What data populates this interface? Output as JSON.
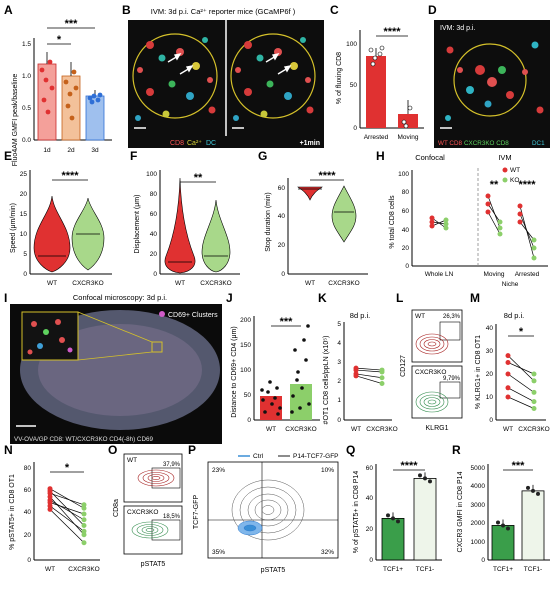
{
  "panels": {
    "A": {
      "letter": "A",
      "ylabel": "Fluo4AM GMFI peak/baseline",
      "ticks": [
        "1.5",
        "1.0",
        "0.5",
        "0.0"
      ],
      "cats": [
        "1d",
        "2d",
        "3d"
      ],
      "sig_top": "***",
      "sig_low": "*",
      "colors": [
        "#e03131",
        "#c5611b",
        "#2f6fd6"
      ]
    },
    "B": {
      "letter": "B",
      "title": "IVM: 3d p.i. Ca²⁺ reporter mice (GCaMP6f )",
      "legend_cd8": "CD8",
      "legend_ca": "Ca²⁺",
      "legend_dc": "DC",
      "time": "+1min"
    },
    "C": {
      "letter": "C",
      "ylabel": "% of fluxing CD8",
      "ticks": [
        "100",
        "50",
        "0"
      ],
      "cats": [
        "Arrested",
        "Moving"
      ],
      "sig": "****",
      "values": [
        85,
        17
      ]
    },
    "D": {
      "letter": "D",
      "title": "IVM: 3d p.i.",
      "legend": [
        "WT CD8",
        "CXCR3KO CD8",
        "DC1"
      ]
    },
    "E": {
      "letter": "E",
      "ylabel": "Speed (μm/min)",
      "ticks": [
        "25",
        "20",
        "15",
        "10",
        "5",
        "0"
      ],
      "cats": [
        "WT",
        "CXCR3KO"
      ],
      "sig": "****"
    },
    "F": {
      "letter": "F",
      "ylabel": "Displacement (μm)",
      "ticks": [
        "100",
        "80",
        "60",
        "40",
        "20",
        "0"
      ],
      "cats": [
        "WT",
        "CXCR3KO"
      ],
      "sig": "**"
    },
    "G": {
      "letter": "G",
      "ylabel": "Stop duration (min)",
      "ticks": [
        "60",
        "40",
        "20",
        "0"
      ],
      "cats": [
        "WT",
        "CXCR3KO"
      ],
      "sig": "****"
    },
    "H": {
      "letter": "H",
      "ylabel": "% total CD8 cells",
      "ticks": [
        "100",
        "80",
        "60",
        "40",
        "20",
        "0"
      ],
      "header_left": "Confocal",
      "header_right": "IVM",
      "legend": [
        "WT",
        "KO"
      ],
      "cats": [
        "Whole LN",
        "Moving",
        "Arrested"
      ],
      "niche": "Niche",
      "sig1": "**",
      "sig2": "****"
    },
    "I": {
      "letter": "I",
      "title": "Confocal microscopy: 3d p.i.",
      "cluster": "CD69+ Clusters",
      "legend": "VV-OVA/GP CD8: WT/CXCR3KO CD4(-8h) CD69"
    },
    "J": {
      "letter": "J",
      "ylabel": "Distance to CD69+ CD4 (μm)",
      "ticks": [
        "200",
        "150",
        "100",
        "50",
        "0"
      ],
      "cats": [
        "WT",
        "CXCR3KO"
      ],
      "sig": "***"
    },
    "K": {
      "letter": "K",
      "ylabel": "#OT1 CD8 cells/ppLN (x10⁵)",
      "ticks": [
        "5",
        "4",
        "3",
        "2",
        "1",
        "0"
      ],
      "title": "8d p.i.",
      "cats": [
        "WT",
        "CXCR3KO"
      ]
    },
    "L": {
      "letter": "L",
      "ylabel": "CD127",
      "xlabel": "KLRG1",
      "top_label": "WT",
      "top_pct": "26,3%",
      "bot_label": "CXCR3KO",
      "bot_pct": "9,79%"
    },
    "M": {
      "letter": "M",
      "ylabel": "% KLRG1+ in CD8 OT1",
      "ticks": [
        "40",
        "30",
        "20",
        "10",
        "0"
      ],
      "title": "8d p.i.",
      "cats": [
        "WT",
        "CXCR3KO"
      ],
      "sig": "*"
    },
    "N": {
      "letter": "N",
      "ylabel": "% pSTAT5+ in CD8 OT1",
      "ticks": [
        "80",
        "60",
        "40",
        "20",
        "0"
      ],
      "cats": [
        "WT",
        "CXCR3KO"
      ],
      "sig": "*"
    },
    "O": {
      "letter": "O",
      "ylabel": "CD8a",
      "xlabel": "pSTAT5",
      "top_label": "WT",
      "top_pct": "37,9%",
      "bot_label": "CXCR3KO",
      "bot_pct": "18,5%"
    },
    "P": {
      "letter": "P",
      "ylabel": "TCF7-GFP",
      "xlabel": "pSTAT5",
      "legend": [
        "Ctrl",
        "P14-TCF7-GFP"
      ],
      "q_tl": "23%",
      "q_tr": "10%",
      "q_bl": "35%",
      "q_br": "32%"
    },
    "Q": {
      "letter": "Q",
      "ylabel": "% of pSTAT5+ in CD8 P14",
      "ticks": [
        "60",
        "40",
        "20",
        "0"
      ],
      "cats": [
        "TCF1+",
        "TCF1-"
      ],
      "sig": "****",
      "values": [
        26,
        51
      ]
    },
    "R": {
      "letter": "R",
      "ylabel": "CXCR3 GMFI in CD8 P14",
      "ticks": [
        "5000",
        "4000",
        "3000",
        "2000",
        "1000",
        "0"
      ],
      "cats": [
        "TCF1+",
        "TCF1-"
      ],
      "sig": "***",
      "values": [
        1800,
        3600
      ]
    }
  },
  "chart_data": [
    {
      "panel": "A",
      "type": "bar",
      "categories": [
        "1d",
        "2d",
        "3d"
      ],
      "values": [
        1.2,
        1.0,
        0.7
      ],
      "ylim": [
        0,
        1.6
      ]
    },
    {
      "panel": "C",
      "type": "bar",
      "categories": [
        "Arrested",
        "Moving"
      ],
      "values": [
        85,
        17
      ],
      "ylim": [
        0,
        110
      ]
    },
    {
      "panel": "K",
      "type": "line",
      "categories": [
        "WT",
        "CXCR3KO"
      ],
      "series": [
        {
          "values": [
            2.7,
            2.6
          ]
        },
        {
          "values": [
            2.6,
            2.5
          ]
        },
        {
          "values": [
            2.4,
            2.2
          ]
        },
        {
          "values": [
            2.3,
            1.9
          ]
        }
      ],
      "ylim": [
        0,
        5
      ]
    },
    {
      "panel": "M",
      "type": "line",
      "categories": [
        "WT",
        "CXCR3KO"
      ],
      "series": [
        {
          "values": [
            28,
            17
          ]
        },
        {
          "values": [
            25,
            20
          ]
        },
        {
          "values": [
            20,
            12
          ]
        },
        {
          "values": [
            14,
            8
          ]
        },
        {
          "values": [
            10,
            5
          ]
        }
      ],
      "ylim": [
        0,
        40
      ]
    },
    {
      "panel": "N",
      "type": "line",
      "categories": [
        "WT",
        "CXCR3KO"
      ],
      "series": [
        {
          "values": [
            62,
            45
          ]
        },
        {
          "values": [
            60,
            30
          ]
        },
        {
          "values": [
            58,
            48
          ]
        },
        {
          "values": [
            55,
            22
          ]
        },
        {
          "values": [
            52,
            35
          ]
        },
        {
          "values": [
            50,
            40
          ]
        },
        {
          "values": [
            47,
            25
          ]
        },
        {
          "values": [
            44,
            15
          ]
        }
      ],
      "ylim": [
        0,
        80
      ]
    },
    {
      "panel": "Q",
      "type": "bar",
      "categories": [
        "TCF1+",
        "TCF1-"
      ],
      "values": [
        26,
        51
      ],
      "ylim": [
        0,
        60
      ]
    },
    {
      "panel": "R",
      "type": "bar",
      "categories": [
        "TCF1+",
        "TCF1-"
      ],
      "values": [
        1800,
        3600
      ],
      "ylim": [
        0,
        5000
      ]
    }
  ]
}
